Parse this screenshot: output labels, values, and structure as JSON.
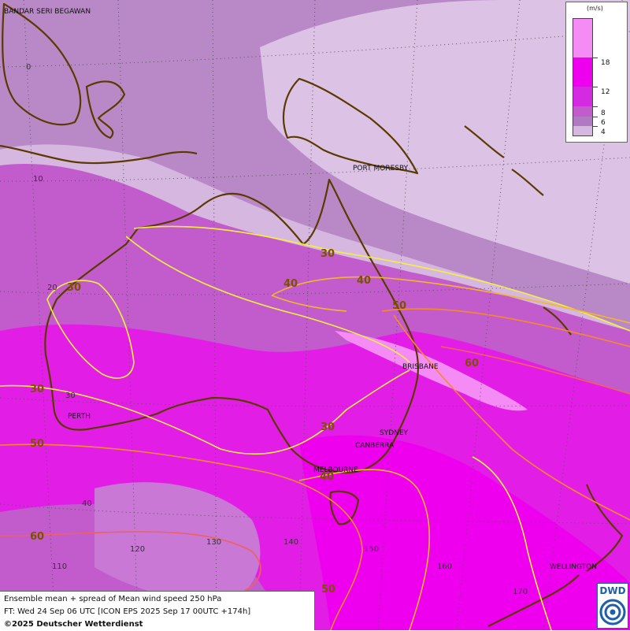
{
  "legend": {
    "unit": "(m/s)",
    "ticks": [
      "18",
      "12",
      "8",
      "6",
      "4"
    ],
    "colors": [
      "#f58cf5",
      "#ee00ee",
      "#d42ae2",
      "#c25ccd",
      "#b07ac2",
      "#d6b7e0"
    ]
  },
  "cities": [
    "BANDAR SERI BEGAWAN",
    "PORT MORESBY",
    "BRISBANE",
    "PERTH",
    "SYDNEY",
    "CANBERRA",
    "MELBOURNE",
    "WELLINGTON"
  ],
  "lat_labels": [
    "0",
    "10",
    "20",
    "30",
    "40"
  ],
  "lon_labels": [
    "110",
    "120",
    "130",
    "140",
    "150",
    "160",
    "170"
  ],
  "isotach_labels": [
    "30",
    "40",
    "40",
    "50",
    "60",
    "30",
    "30",
    "30",
    "50",
    "40",
    "60",
    "50"
  ],
  "info": {
    "line1": "Ensemble mean + spread of Mean wind speed 250 hPa",
    "line2": "FT: Wed 24 Sep 06 UTC [ICON EPS 2025 Sep 17 00UTC +174h]",
    "line3": "©2025 Deutscher Wetterdienst"
  },
  "logo": {
    "text": "DWD",
    "color": "#1f5ea8"
  }
}
